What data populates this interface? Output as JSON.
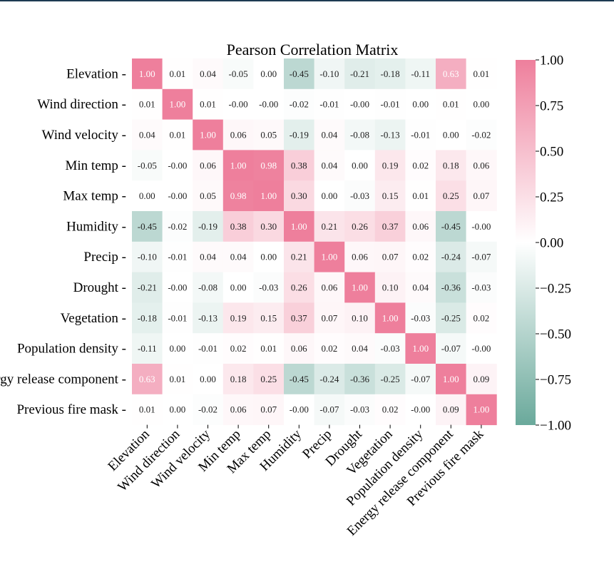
{
  "colors": {
    "top_rule": "#1d3b52",
    "low": "#6aa99b",
    "mid": "#ffffff",
    "high": "#ee7f9c",
    "text_dark": "#1f1f1f",
    "text_light": "#ffffff"
  },
  "chart_data": {
    "type": "heatmap",
    "title": "Pearson Correlation Matrix",
    "rows": [
      "Elevation",
      "Wind direction",
      "Wind velocity",
      "Min temp",
      "Max temp",
      "Humidity",
      "Precip",
      "Drought",
      "Vegetation",
      "Population density",
      "Energy release component",
      "Previous fire mask"
    ],
    "columns": [
      "Elevation",
      "Wind direction",
      "Wind velocity",
      "Min temp",
      "Max temp",
      "Humidity",
      "Precip",
      "Drought",
      "Vegetation",
      "Population density",
      "Energy release component",
      "Previous fire mask"
    ],
    "values": [
      [
        1.0,
        0.01,
        0.04,
        -0.05,
        0.0,
        -0.45,
        -0.1,
        -0.21,
        -0.18,
        -0.11,
        0.63,
        0.01
      ],
      [
        0.01,
        1.0,
        0.01,
        -0.0,
        -0.0,
        -0.02,
        -0.01,
        -0.0,
        -0.01,
        0.0,
        0.01,
        0.0
      ],
      [
        0.04,
        0.01,
        1.0,
        0.06,
        0.05,
        -0.19,
        0.04,
        -0.08,
        -0.13,
        -0.01,
        0.0,
        -0.02
      ],
      [
        -0.05,
        -0.0,
        0.06,
        1.0,
        0.98,
        0.38,
        0.04,
        0.0,
        0.19,
        0.02,
        0.18,
        0.06
      ],
      [
        0.0,
        -0.0,
        0.05,
        0.98,
        1.0,
        0.3,
        0.0,
        -0.03,
        0.15,
        0.01,
        0.25,
        0.07
      ],
      [
        -0.45,
        -0.02,
        -0.19,
        0.38,
        0.3,
        1.0,
        0.21,
        0.26,
        0.37,
        0.06,
        -0.45,
        -0.0
      ],
      [
        -0.1,
        -0.01,
        0.04,
        0.04,
        0.0,
        0.21,
        1.0,
        0.06,
        0.07,
        0.02,
        -0.24,
        -0.07
      ],
      [
        -0.21,
        -0.0,
        -0.08,
        0.0,
        -0.03,
        0.26,
        0.06,
        1.0,
        0.1,
        0.04,
        -0.36,
        -0.03
      ],
      [
        -0.18,
        -0.01,
        -0.13,
        0.19,
        0.15,
        0.37,
        0.07,
        0.1,
        1.0,
        -0.03,
        -0.25,
        0.02
      ],
      [
        -0.11,
        0.0,
        -0.01,
        0.02,
        0.01,
        0.06,
        0.02,
        0.04,
        -0.03,
        1.0,
        -0.07,
        -0.0
      ],
      [
        0.63,
        0.01,
        0.0,
        0.18,
        0.25,
        -0.45,
        -0.24,
        -0.36,
        -0.25,
        -0.07,
        1.0,
        0.09
      ],
      [
        0.01,
        0.0,
        -0.02,
        0.06,
        0.07,
        -0.0,
        -0.07,
        -0.03,
        0.02,
        -0.0,
        0.09,
        1.0
      ]
    ],
    "value_labels": [
      [
        "1.00",
        "0.01",
        "0.04",
        "-0.05",
        "0.00",
        "-0.45",
        "-0.10",
        "-0.21",
        "-0.18",
        "-0.11",
        "0.63",
        "0.01"
      ],
      [
        "0.01",
        "1.00",
        "0.01",
        "-0.00",
        "-0.00",
        "-0.02",
        "-0.01",
        "-0.00",
        "-0.01",
        "0.00",
        "0.01",
        "0.00"
      ],
      [
        "0.04",
        "0.01",
        "1.00",
        "0.06",
        "0.05",
        "-0.19",
        "0.04",
        "-0.08",
        "-0.13",
        "-0.01",
        "0.00",
        "-0.02"
      ],
      [
        "-0.05",
        "-0.00",
        "0.06",
        "1.00",
        "0.98",
        "0.38",
        "0.04",
        "0.00",
        "0.19",
        "0.02",
        "0.18",
        "0.06"
      ],
      [
        "0.00",
        "-0.00",
        "0.05",
        "0.98",
        "1.00",
        "0.30",
        "0.00",
        "-0.03",
        "0.15",
        "0.01",
        "0.25",
        "0.07"
      ],
      [
        "-0.45",
        "-0.02",
        "-0.19",
        "0.38",
        "0.30",
        "1.00",
        "0.21",
        "0.26",
        "0.37",
        "0.06",
        "-0.45",
        "-0.00"
      ],
      [
        "-0.10",
        "-0.01",
        "0.04",
        "0.04",
        "0.00",
        "0.21",
        "1.00",
        "0.06",
        "0.07",
        "0.02",
        "-0.24",
        "-0.07"
      ],
      [
        "-0.21",
        "-0.00",
        "-0.08",
        "0.00",
        "-0.03",
        "0.26",
        "0.06",
        "1.00",
        "0.10",
        "0.04",
        "-0.36",
        "-0.03"
      ],
      [
        "-0.18",
        "-0.01",
        "-0.13",
        "0.19",
        "0.15",
        "0.37",
        "0.07",
        "0.10",
        "1.00",
        "-0.03",
        "-0.25",
        "0.02"
      ],
      [
        "-0.11",
        "0.00",
        "-0.01",
        "0.02",
        "0.01",
        "0.06",
        "0.02",
        "0.04",
        "-0.03",
        "1.00",
        "-0.07",
        "-0.00"
      ],
      [
        "0.63",
        "0.01",
        "0.00",
        "0.18",
        "0.25",
        "-0.45",
        "-0.24",
        "-0.36",
        "-0.25",
        "-0.07",
        "1.00",
        "0.09"
      ],
      [
        "0.01",
        "0.00",
        "-0.02",
        "0.06",
        "0.07",
        "-0.00",
        "-0.07",
        "-0.03",
        "0.02",
        "-0.00",
        "0.09",
        "1.00"
      ]
    ],
    "colorbar": {
      "range": [
        -1.0,
        1.0
      ],
      "ticks": [
        1.0,
        0.75,
        0.5,
        0.25,
        0.0,
        -0.25,
        -0.5,
        -0.75,
        -1.0
      ],
      "tick_labels": [
        "1.00",
        "0.75",
        "0.50",
        "0.25",
        "0.00",
        "−0.25",
        "−0.50",
        "−0.75",
        "−1.00"
      ],
      "placement": "right"
    },
    "xlabel": "",
    "ylabel": "",
    "grid": false
  }
}
